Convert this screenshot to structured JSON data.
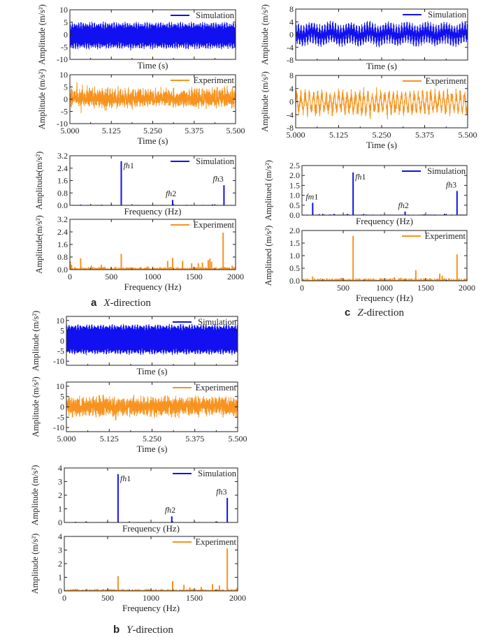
{
  "colors": {
    "simulation": "#1010f0",
    "experiment": "#f7931e",
    "axis": "#222222"
  },
  "captions": [
    {
      "panel": "a",
      "letter": "a",
      "axis": "X",
      "suffix": "-direction"
    },
    {
      "panel": "b",
      "letter": "b",
      "axis": "Y",
      "suffix": "-direction"
    },
    {
      "panel": "c",
      "letter": "c",
      "axis": "Z",
      "suffix": "-direction"
    }
  ],
  "chart_data": [
    {
      "id": "x_time_sim",
      "type": "line",
      "panel": "a",
      "legend": "Simulation",
      "series": "simulation",
      "legend_position": "top-right",
      "xlabel": "Time (s)",
      "ylabel": "Amplitude (m/s²)",
      "xlim": [
        5.0,
        5.5
      ],
      "ylim": [
        -10,
        10
      ],
      "xticks": [
        5.0,
        5.125,
        5.25,
        5.375,
        5.5
      ],
      "xtick_labels": [],
      "yticks": [
        -10,
        -5,
        0,
        5,
        10
      ],
      "ytick_labels": [
        "-10",
        "-5",
        "0",
        "5",
        "10"
      ],
      "signal": {
        "components": [
          {
            "freq": 620,
            "amp": 4.6
          },
          {
            "freq": 150,
            "amp": 0.9
          }
        ],
        "offset": -0.4,
        "noise": 0.3
      }
    },
    {
      "id": "x_time_exp",
      "type": "line",
      "panel": "a",
      "legend": "Experiment",
      "series": "experiment",
      "legend_position": "top-right",
      "xlabel": "Time (s)",
      "ylabel": "Amplitude (m/s²)",
      "xlim": [
        5.0,
        5.5
      ],
      "ylim": [
        -10,
        10
      ],
      "xticks": [
        5.0,
        5.125,
        5.25,
        5.375,
        5.5
      ],
      "xtick_labels": [
        "5.000",
        "5.125",
        "5.250",
        "5.375",
        "5.500"
      ],
      "yticks": [
        -10,
        -5,
        0,
        5,
        10
      ],
      "ytick_labels": [
        "-10",
        "-5",
        "0",
        "5",
        "10"
      ],
      "signal": {
        "components": [
          {
            "freq": 620,
            "amp": 1.0
          },
          {
            "freq": 1850,
            "amp": 1.6
          },
          {
            "freq": 130,
            "amp": 0.7
          }
        ],
        "offset": 0.4,
        "noise": 2.2
      }
    },
    {
      "id": "x_freq_sim",
      "type": "bar",
      "panel": "a",
      "legend": "Simulation",
      "series": "simulation",
      "legend_position": "top-right",
      "xlabel": "Frequency (Hz)",
      "ylabel": "Amplitude(m/s²)",
      "xlim": [
        0,
        2000
      ],
      "ylim": [
        0,
        3.2
      ],
      "xticks": [
        0,
        500,
        1000,
        1500,
        2000
      ],
      "xtick_labels": [],
      "yticks": [
        0,
        0.8,
        1.6,
        2.4,
        3.2
      ],
      "ytick_labels": [
        "0.0",
        "0.8",
        "1.6",
        "2.4",
        "3.2"
      ],
      "peaks": [
        [
          130,
          0.05
        ],
        [
          380,
          0.04
        ],
        [
          500,
          0.05
        ],
        [
          620,
          2.85
        ],
        [
          820,
          0.03
        ],
        [
          1240,
          0.35
        ],
        [
          1600,
          0.03
        ],
        [
          1720,
          0.06
        ],
        [
          1860,
          1.3
        ]
      ],
      "noise_floor": 0.02,
      "annotations": [
        {
          "italic": "fh",
          "num": "1",
          "freq": 620,
          "amp": 2.85
        },
        {
          "italic": "fh",
          "num": "2",
          "freq": 1240,
          "amp": 0.35
        },
        {
          "italic": "fh",
          "num": "3",
          "freq": 1860,
          "amp": 1.3
        }
      ]
    },
    {
      "id": "x_freq_exp",
      "type": "bar",
      "panel": "a",
      "legend": "Experiment",
      "series": "experiment",
      "legend_position": "top-right",
      "xlabel": "Frequency (Hz)",
      "ylabel": "Amplitude(m/s²)",
      "xlim": [
        0,
        2000
      ],
      "ylim": [
        0,
        3.2
      ],
      "xticks": [
        0,
        500,
        1000,
        1500,
        2000
      ],
      "xtick_labels": [
        "0",
        "500",
        "1000",
        "1500",
        "2000"
      ],
      "yticks": [
        0,
        0.8,
        1.6,
        2.4,
        3.2
      ],
      "ytick_labels": [
        "0.0",
        "0.8",
        "1.6",
        "2.4",
        "3.2"
      ],
      "peaks": [
        [
          5,
          0.5
        ],
        [
          20,
          0.3
        ],
        [
          130,
          0.72
        ],
        [
          260,
          0.25
        ],
        [
          380,
          0.3
        ],
        [
          620,
          1.0
        ],
        [
          940,
          0.2
        ],
        [
          1180,
          0.55
        ],
        [
          1240,
          0.75
        ],
        [
          1360,
          0.55
        ],
        [
          1470,
          0.4
        ],
        [
          1550,
          0.4
        ],
        [
          1600,
          0.45
        ],
        [
          1670,
          0.6
        ],
        [
          1690,
          0.7
        ],
        [
          1710,
          0.5
        ],
        [
          1850,
          2.35
        ],
        [
          1960,
          0.25
        ]
      ],
      "noise_floor": 0.12
    },
    {
      "id": "y_time_sim",
      "type": "line",
      "panel": "b",
      "legend": "Simulation",
      "series": "simulation",
      "legend_position": "top-right",
      "xlabel": "Time (s)",
      "ylabel": "Amplitude (m/s²)",
      "xlim": [
        5.0,
        5.5
      ],
      "ylim": [
        -12,
        12
      ],
      "xticks": [
        5.0,
        5.125,
        5.25,
        5.375,
        5.5
      ],
      "xtick_labels": [],
      "yticks": [
        -10,
        -5,
        0,
        5,
        10
      ],
      "ytick_labels": [
        "-10",
        "-5",
        "0",
        "5",
        "10"
      ],
      "signal": {
        "components": [
          {
            "freq": 620,
            "amp": 6.8
          },
          {
            "freq": 150,
            "amp": 0.6
          }
        ],
        "offset": 0.7,
        "noise": 0.3
      }
    },
    {
      "id": "y_time_exp",
      "type": "line",
      "panel": "b",
      "legend": "Experiment",
      "series": "experiment",
      "legend_position": "top-right",
      "xlabel": "Time (s)",
      "ylabel": "Amplitude (m/s²)",
      "xlim": [
        5.0,
        5.5
      ],
      "ylim": [
        -12,
        12
      ],
      "xticks": [
        5.0,
        5.125,
        5.25,
        5.375,
        5.5
      ],
      "xtick_labels": [
        "5.000",
        "5.125",
        "5.250",
        "5.375",
        "5.500"
      ],
      "yticks": [
        -10,
        -5,
        0,
        5,
        10
      ],
      "ytick_labels": [
        "-10",
        "-5",
        "0",
        "5",
        "10"
      ],
      "signal": {
        "components": [
          {
            "freq": 1880,
            "amp": 2.6
          },
          {
            "freq": 620,
            "amp": 0.9
          }
        ],
        "offset": 0.3,
        "noise": 2.4
      }
    },
    {
      "id": "y_freq_sim",
      "type": "bar",
      "panel": "b",
      "legend": "Simulation",
      "series": "simulation",
      "legend_position": "top-right",
      "xlabel": "Frequency (Hz)",
      "ylabel": "Amplitude (m/s²)",
      "xlim": [
        0,
        2000
      ],
      "ylim": [
        0,
        4
      ],
      "xticks": [
        0,
        500,
        1000,
        1500,
        2000
      ],
      "xtick_labels": [],
      "yticks": [
        0,
        1,
        2,
        3,
        4
      ],
      "ytick_labels": [
        "0",
        "1",
        "2",
        "3",
        "4"
      ],
      "peaks": [
        [
          130,
          0.05
        ],
        [
          260,
          0.04
        ],
        [
          500,
          0.05
        ],
        [
          620,
          3.55
        ],
        [
          1240,
          0.45
        ],
        [
          1500,
          0.04
        ],
        [
          1760,
          0.06
        ],
        [
          1880,
          1.8
        ]
      ],
      "noise_floor": 0.02,
      "annotations": [
        {
          "italic": "fh",
          "num": "1",
          "freq": 620,
          "amp": 3.55
        },
        {
          "italic": "fh",
          "num": "2",
          "freq": 1240,
          "amp": 0.45
        },
        {
          "italic": "fh",
          "num": "3",
          "freq": 1880,
          "amp": 1.8
        }
      ]
    },
    {
      "id": "y_freq_exp",
      "type": "bar",
      "panel": "b",
      "legend": "Experiment",
      "series": "experiment",
      "legend_position": "top-right",
      "xlabel": "Frequency (Hz)",
      "ylabel": "Amplitude (m/s²)",
      "xlim": [
        0,
        2000
      ],
      "ylim": [
        0,
        4
      ],
      "xticks": [
        0,
        500,
        1000,
        1500,
        2000
      ],
      "xtick_labels": [
        "0",
        "500",
        "1000",
        "1500",
        "2000"
      ],
      "yticks": [
        0,
        1,
        2,
        3,
        4
      ],
      "ytick_labels": [
        "0",
        "1",
        "2",
        "3",
        "4"
      ],
      "peaks": [
        [
          130,
          0.15
        ],
        [
          260,
          0.15
        ],
        [
          390,
          0.12
        ],
        [
          620,
          1.08
        ],
        [
          1250,
          0.72
        ],
        [
          1380,
          0.45
        ],
        [
          1450,
          0.25
        ],
        [
          1580,
          0.3
        ],
        [
          1710,
          0.5
        ],
        [
          1790,
          0.4
        ],
        [
          1880,
          3.12
        ],
        [
          1990,
          0.2
        ]
      ],
      "noise_floor": 0.1
    },
    {
      "id": "z_time_sim",
      "type": "line",
      "panel": "c",
      "legend": "Simulation",
      "series": "simulation",
      "legend_position": "top-right",
      "xlabel": "Time (s)",
      "ylabel": "Amplitude (m/s²)",
      "xlim": [
        5.0,
        5.5
      ],
      "ylim": [
        -8,
        8
      ],
      "xticks": [
        5.0,
        5.125,
        5.25,
        5.375,
        5.5
      ],
      "xtick_labels": [],
      "yticks": [
        -8,
        -4,
        0,
        4,
        8
      ],
      "ytick_labels": [
        "-8",
        "-4",
        "0",
        "4",
        "8"
      ],
      "signal": {
        "components": [
          {
            "freq": 620,
            "amp": 2.2
          },
          {
            "freq": 130,
            "amp": 1.4
          },
          {
            "freq": 18,
            "amp": 0.6
          }
        ],
        "offset": 0.2,
        "noise": 0.2
      }
    },
    {
      "id": "z_time_exp",
      "type": "line",
      "panel": "c",
      "legend": "Experiment",
      "series": "experiment",
      "legend_position": "top-right",
      "xlabel": "Time (s)",
      "ylabel": "Amplitude (m/s²)",
      "xlim": [
        5.0,
        5.5
      ],
      "ylim": [
        -8,
        8
      ],
      "xticks": [
        5.0,
        5.125,
        5.25,
        5.375,
        5.5
      ],
      "xtick_labels": [
        "5.000",
        "5.125",
        "5.250",
        "5.375",
        "5.500"
      ],
      "yticks": [
        -8,
        -4,
        0,
        4,
        8
      ],
      "ytick_labels": [
        "-8",
        "-4",
        "0",
        "4",
        "8"
      ],
      "signal": {
        "components": [
          {
            "freq": 82,
            "amp": 2.4
          },
          {
            "freq": 620,
            "amp": 0.8
          }
        ],
        "offset": -0.3,
        "noise": 1.3
      }
    },
    {
      "id": "z_freq_sim",
      "type": "bar",
      "panel": "c",
      "legend": "Simulation",
      "series": "simulation",
      "legend_position": "top-right",
      "xlabel": "Frequency (Hz)",
      "ylabel": "Amplitued (m/s²)",
      "xlim": [
        0,
        2000
      ],
      "ylim": [
        0,
        2.5
      ],
      "xticks": [
        0,
        500,
        1000,
        1500,
        2000
      ],
      "xtick_labels": [],
      "yticks": [
        0,
        0.5,
        1.0,
        1.5,
        2.0,
        2.5
      ],
      "ytick_labels": [
        "0.0",
        "0.5",
        "1.0",
        "1.5",
        "2.0",
        "2.5"
      ],
      "peaks": [
        [
          130,
          0.62
        ],
        [
          210,
          0.05
        ],
        [
          260,
          0.04
        ],
        [
          390,
          0.06
        ],
        [
          550,
          0.06
        ],
        [
          620,
          2.15
        ],
        [
          1250,
          0.18
        ],
        [
          1480,
          0.04
        ],
        [
          1730,
          0.07
        ],
        [
          1880,
          1.22
        ]
      ],
      "noise_floor": 0.02,
      "annotations": [
        {
          "italic": "fm",
          "num": "1",
          "freq": 130,
          "amp": 0.62
        },
        {
          "italic": "fh",
          "num": "1",
          "freq": 620,
          "amp": 2.15
        },
        {
          "italic": "fh",
          "num": "2",
          "freq": 1250,
          "amp": 0.18
        },
        {
          "italic": "fh",
          "num": "3",
          "freq": 1880,
          "amp": 1.22
        }
      ]
    },
    {
      "id": "z_freq_exp",
      "type": "bar",
      "panel": "c",
      "legend": "Experiment",
      "series": "experiment",
      "legend_position": "top-right",
      "xlabel": "Frequency (Hz)",
      "ylabel": "Amplitued (m/s²)",
      "xlim": [
        0,
        2000
      ],
      "ylim": [
        0,
        2.0
      ],
      "xticks": [
        0,
        500,
        1000,
        1500,
        2000
      ],
      "xtick_labels": [
        "0",
        "500",
        "1000",
        "1500",
        "2000"
      ],
      "yticks": [
        0,
        0.5,
        1.0,
        1.5,
        2.0
      ],
      "ytick_labels": [
        "0.0",
        "0.5",
        "1.0",
        "1.5",
        "2.0"
      ],
      "peaks": [
        [
          130,
          0.17
        ],
        [
          480,
          0.12
        ],
        [
          620,
          1.78
        ],
        [
          1120,
          0.14
        ],
        [
          1200,
          0.12
        ],
        [
          1380,
          0.42
        ],
        [
          1550,
          0.1
        ],
        [
          1670,
          0.28
        ],
        [
          1700,
          0.2
        ],
        [
          1880,
          1.05
        ]
      ],
      "noise_floor": 0.07
    }
  ]
}
